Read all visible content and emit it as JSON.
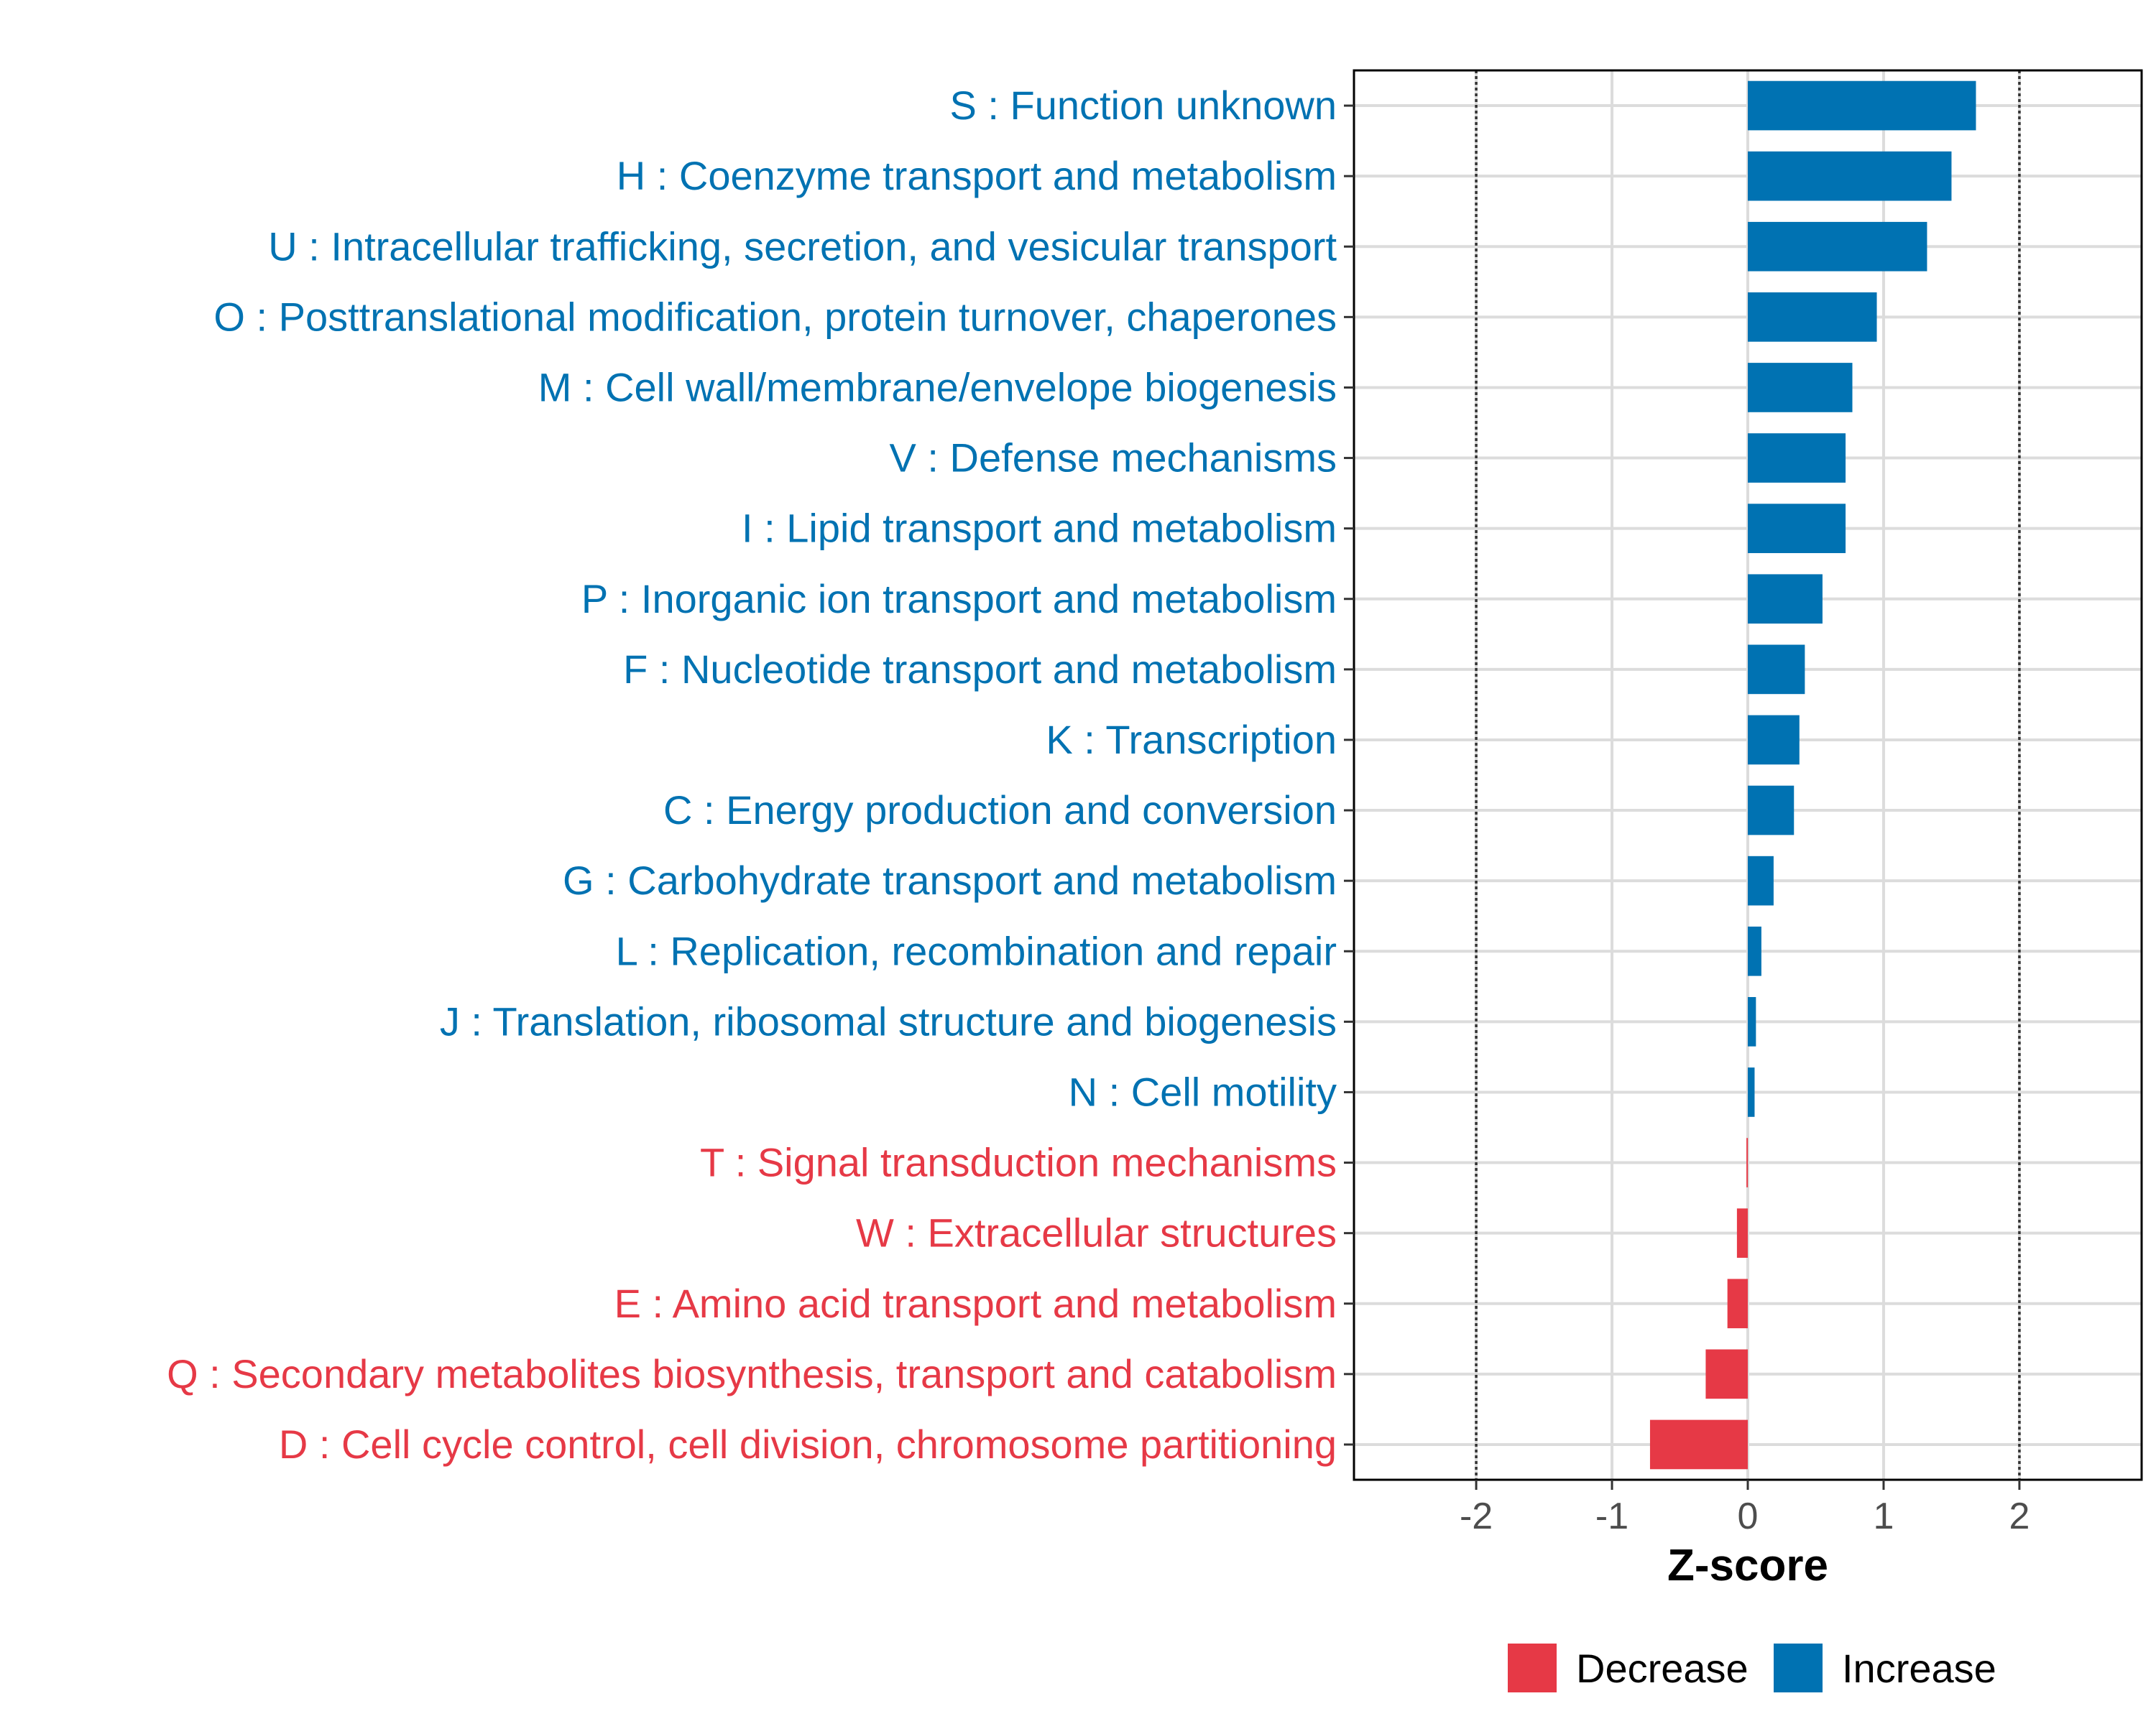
{
  "chart_data": {
    "type": "bar",
    "orientation": "horizontal",
    "xlabel": "Z-score",
    "xlim": [
      -2.9,
      2.9
    ],
    "xticks": [
      -2,
      -1,
      0,
      1,
      2
    ],
    "xtick_labels": [
      "-2",
      "-1",
      "0",
      "1",
      "2"
    ],
    "reference_lines": [
      -2,
      2
    ],
    "grid": true,
    "legend_position": "bottom",
    "legend": [
      {
        "name": "Decrease",
        "color": "#E63946"
      },
      {
        "name": "Increase",
        "color": "#0072B2"
      }
    ],
    "categories": [
      "S : Function unknown",
      "H : Coenzyme transport and metabolism",
      "U : Intracellular trafficking, secretion, and vesicular transport",
      "O : Posttranslational modification, protein turnover, chaperones",
      "M : Cell wall/membrane/envelope biogenesis",
      "V : Defense mechanisms",
      "I : Lipid transport and metabolism",
      "P : Inorganic ion transport and metabolism",
      "F : Nucleotide transport and metabolism",
      "K : Transcription",
      "C : Energy production and conversion",
      "G : Carbohydrate transport and metabolism",
      "L : Replication, recombination and repair",
      "J : Translation, ribosomal structure and biogenesis",
      "N : Cell motility",
      "T : Signal transduction mechanisms",
      "W : Extracellular structures",
      "E : Amino acid transport and metabolism",
      "Q : Secondary metabolites biosynthesis, transport and catabolism",
      "D : Cell cycle control, cell division, chromosome partitioning"
    ],
    "values": [
      1.68,
      1.5,
      1.32,
      0.95,
      0.77,
      0.72,
      0.72,
      0.55,
      0.42,
      0.38,
      0.34,
      0.19,
      0.1,
      0.06,
      0.05,
      -0.01,
      -0.08,
      -0.15,
      -0.31,
      -0.72
    ],
    "groups": [
      "Increase",
      "Increase",
      "Increase",
      "Increase",
      "Increase",
      "Increase",
      "Increase",
      "Increase",
      "Increase",
      "Increase",
      "Increase",
      "Increase",
      "Increase",
      "Increase",
      "Increase",
      "Decrease",
      "Decrease",
      "Decrease",
      "Decrease",
      "Decrease"
    ],
    "colors": {
      "Increase": "#0072B2",
      "Decrease": "#E63946"
    }
  }
}
